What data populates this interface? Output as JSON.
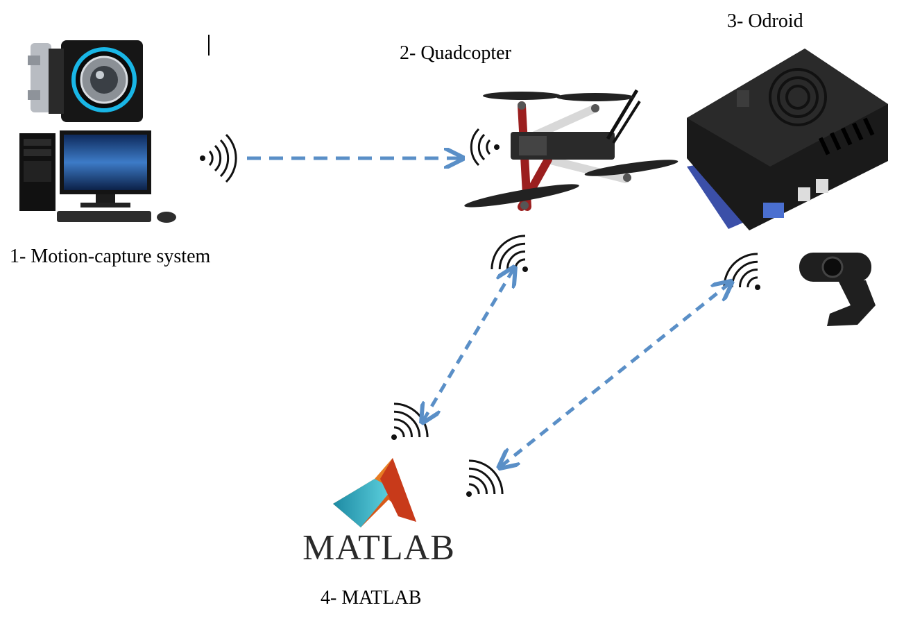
{
  "labels": {
    "motion_capture": "1- Motion-capture system",
    "quadcopter": "2- Quadcopter",
    "odroid": "3- Odroid",
    "matlab": "4- MATLAB"
  },
  "logo": {
    "matlab_wordmark": "MATLAB"
  },
  "colors": {
    "link_arrow": "#5a8fc7",
    "signal": "#111111",
    "odroid_case": "#1a1a1a",
    "odroid_base": "#3b4fa8",
    "frame_red": "#9b1f1f",
    "mocap_ring": "#19b6e6"
  },
  "icons": [
    "camera-icon",
    "desktop-pc-icon",
    "wifi-signal-icon",
    "quadcopter-icon",
    "odroid-board-icon",
    "webcam-icon",
    "matlab-logo-icon"
  ]
}
